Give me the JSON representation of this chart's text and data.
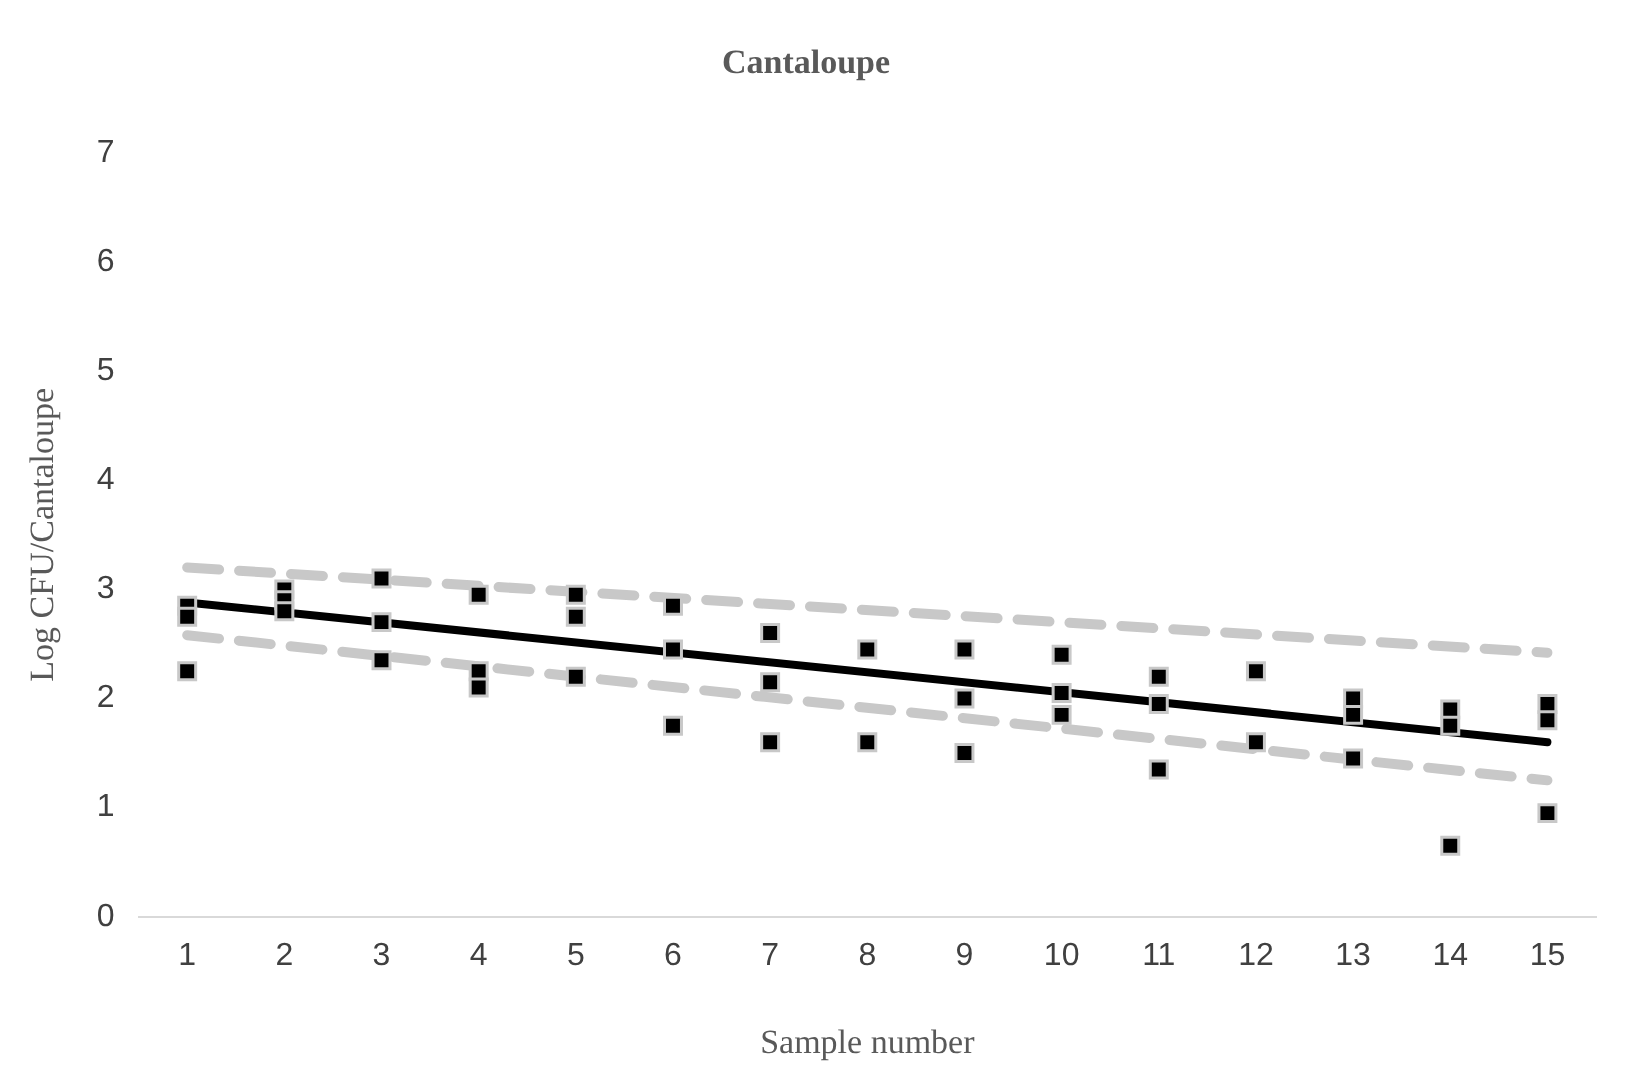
{
  "chart_data": {
    "type": "scatter",
    "title": "Cantaloupe",
    "xlabel": "Sample number",
    "ylabel": "Log CFU/Cantaloupe",
    "xlim": [
      0.5,
      15.5
    ],
    "xticks": [
      1,
      2,
      3,
      4,
      5,
      6,
      7,
      8,
      9,
      10,
      11,
      12,
      13,
      14,
      15
    ],
    "ylim": [
      0,
      7
    ],
    "yticks": [
      0,
      1,
      2,
      3,
      4,
      5,
      6,
      7
    ],
    "grid": false,
    "legend": false,
    "series": [
      {
        "type": "scatter",
        "color": "#000000",
        "marker": "square",
        "x": [
          1,
          1,
          1,
          2,
          2,
          2,
          3,
          3,
          3,
          4,
          4,
          4,
          5,
          5,
          5,
          6,
          6,
          6,
          7,
          7,
          7,
          8,
          8,
          9,
          9,
          9,
          10,
          10,
          10,
          11,
          11,
          11,
          12,
          12,
          13,
          13,
          13,
          14,
          14,
          14,
          15,
          15,
          15
        ],
        "values": [
          2.85,
          2.75,
          2.25,
          3.0,
          2.9,
          2.8,
          3.1,
          2.7,
          2.35,
          2.95,
          2.25,
          2.1,
          2.95,
          2.75,
          2.2,
          2.85,
          2.45,
          1.75,
          2.6,
          2.15,
          1.6,
          2.45,
          1.6,
          2.45,
          2.0,
          1.5,
          2.4,
          2.05,
          1.85,
          2.2,
          1.95,
          1.35,
          2.25,
          1.6,
          2.0,
          1.85,
          1.45,
          1.9,
          1.75,
          0.65,
          1.95,
          1.8,
          0.95
        ]
      },
      {
        "type": "line",
        "color": "#000000",
        "line_style": "solid",
        "marker": "none",
        "x": [
          1,
          15
        ],
        "values": [
          2.88,
          1.6
        ]
      },
      {
        "type": "line",
        "color": "#c8c8c8",
        "line_style": "dashed",
        "marker": "none",
        "x": [
          1,
          15
        ],
        "values": [
          3.2,
          2.42
        ]
      },
      {
        "type": "line",
        "color": "#c8c8c8",
        "line_style": "dashed",
        "marker": "none",
        "x": [
          1,
          15
        ],
        "values": [
          2.58,
          1.25
        ]
      }
    ]
  }
}
